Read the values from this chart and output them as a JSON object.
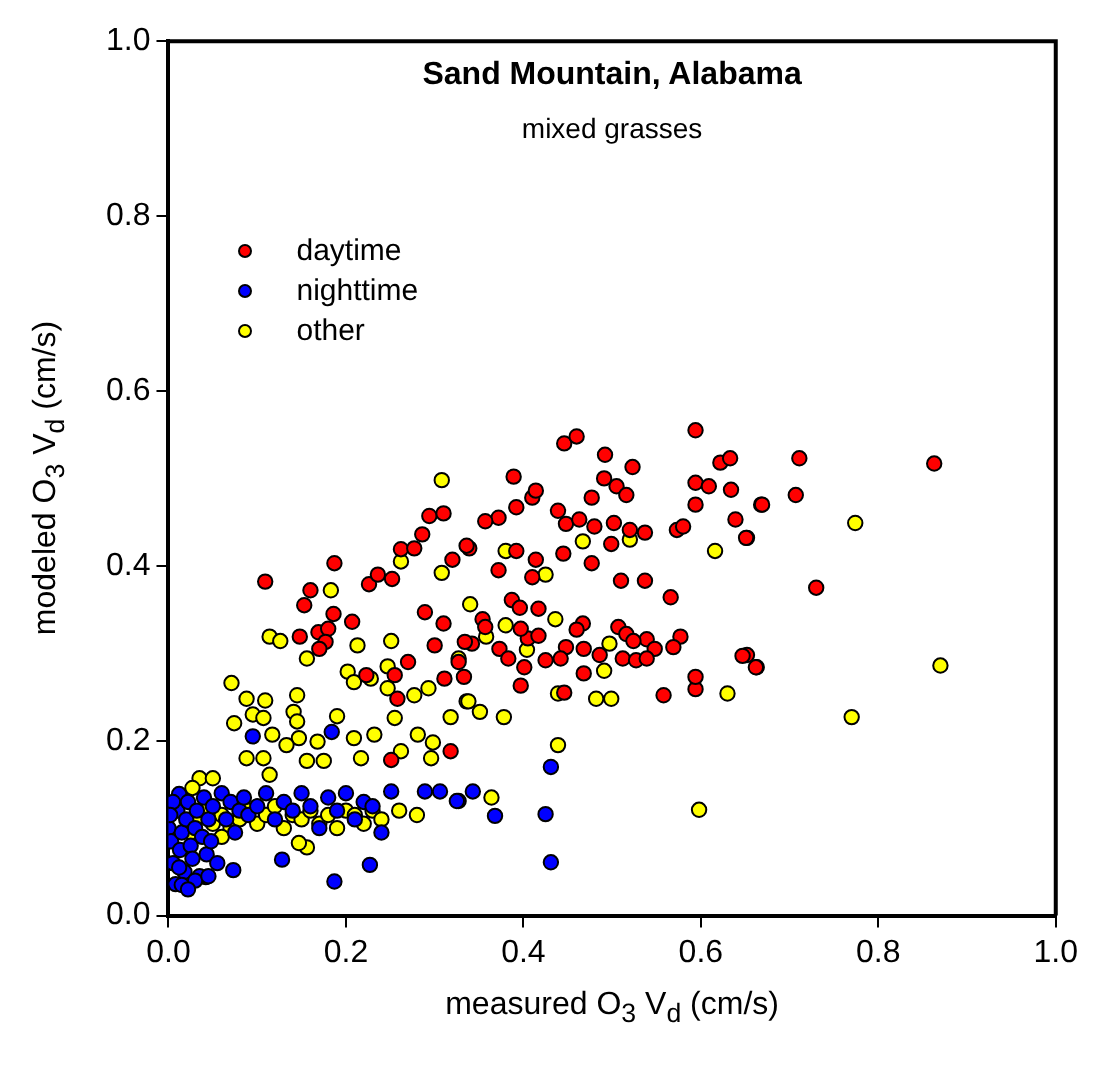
{
  "chart_data": {
    "type": "scatter",
    "title": "Sand Mountain, Alabama",
    "subtitle": "mixed grasses",
    "xlabel": "measured  O$_{3}$ V$_{d}$ (cm/s)",
    "ylabel": "modeled O$_{3}$ V$_{d}$ (cm/s)",
    "xlim": [
      0,
      1
    ],
    "ylim": [
      0,
      1
    ],
    "xticks": [
      {
        "value": 0,
        "label": "0.0"
      },
      {
        "value": 0.2,
        "label": "0.2"
      },
      {
        "value": 0.4,
        "label": "0.4"
      },
      {
        "value": 0.6,
        "label": "0.6"
      },
      {
        "value": 0.8,
        "label": "0.8"
      },
      {
        "value": 1,
        "label": "1.0"
      }
    ],
    "yticks": [
      {
        "value": 0,
        "label": "0.0"
      },
      {
        "value": 0.2,
        "label": "0.2"
      },
      {
        "value": 0.4,
        "label": "0.4"
      },
      {
        "value": 0.6,
        "label": "0.6"
      },
      {
        "value": 0.8,
        "label": "0.8"
      },
      {
        "value": 1,
        "label": "1.0"
      }
    ],
    "grid": false,
    "legend": "top left",
    "marker": "circle",
    "series": [
      {
        "name": "daytime",
        "color": "#ff0000",
        "x": [
          0.863,
          0.711,
          0.707,
          0.668,
          0.652,
          0.73,
          0.663,
          0.652,
          0.446,
          0.46,
          0.594,
          0.492,
          0.523,
          0.389,
          0.491,
          0.505,
          0.516,
          0.477,
          0.594,
          0.609,
          0.634,
          0.622,
          0.633,
          0.669,
          0.594,
          0.639,
          0.651,
          0.41,
          0.414,
          0.392,
          0.439,
          0.448,
          0.463,
          0.48,
          0.502,
          0.52,
          0.537,
          0.499,
          0.573,
          0.58,
          0.477,
          0.445,
          0.414,
          0.392,
          0.372,
          0.357,
          0.339,
          0.32,
          0.372,
          0.41,
          0.51,
          0.537,
          0.566,
          0.387,
          0.396,
          0.417,
          0.467,
          0.46,
          0.507,
          0.516,
          0.539,
          0.577,
          0.569,
          0.548,
          0.524,
          0.512,
          0.527,
          0.539,
          0.486,
          0.468,
          0.448,
          0.442,
          0.425,
          0.401,
          0.405,
          0.417,
          0.397,
          0.354,
          0.357,
          0.373,
          0.383,
          0.342,
          0.333,
          0.397,
          0.468,
          0.446,
          0.558,
          0.594,
          0.594,
          0.647,
          0.662,
          0.318,
          0.109,
          0.187,
          0.16,
          0.153,
          0.186,
          0.207,
          0.226,
          0.236,
          0.252,
          0.262,
          0.277,
          0.286,
          0.294,
          0.31,
          0.336,
          0.148,
          0.169,
          0.18,
          0.177,
          0.17,
          0.289,
          0.31,
          0.3,
          0.334,
          0.255,
          0.223,
          0.258,
          0.251,
          0.27,
          0.311,
          0.327
        ],
        "values": [
          0.517,
          0.523,
          0.481,
          0.47,
          0.432,
          0.375,
          0.284,
          0.298,
          0.54,
          0.548,
          0.555,
          0.527,
          0.513,
          0.502,
          0.5,
          0.491,
          0.481,
          0.478,
          0.495,
          0.491,
          0.487,
          0.518,
          0.523,
          0.47,
          0.47,
          0.453,
          0.432,
          0.478,
          0.486,
          0.467,
          0.463,
          0.448,
          0.453,
          0.445,
          0.449,
          0.441,
          0.438,
          0.425,
          0.441,
          0.445,
          0.403,
          0.414,
          0.407,
          0.417,
          0.455,
          0.451,
          0.42,
          0.407,
          0.395,
          0.387,
          0.383,
          0.383,
          0.364,
          0.361,
          0.352,
          0.351,
          0.334,
          0.327,
          0.33,
          0.322,
          0.316,
          0.319,
          0.307,
          0.305,
          0.314,
          0.294,
          0.292,
          0.294,
          0.298,
          0.305,
          0.307,
          0.294,
          0.292,
          0.284,
          0.317,
          0.32,
          0.328,
          0.339,
          0.33,
          0.305,
          0.294,
          0.311,
          0.273,
          0.263,
          0.277,
          0.255,
          0.252,
          0.259,
          0.273,
          0.297,
          0.284,
          0.188,
          0.382,
          0.403,
          0.372,
          0.355,
          0.345,
          0.336,
          0.379,
          0.39,
          0.385,
          0.419,
          0.42,
          0.436,
          0.457,
          0.46,
          0.423,
          0.319,
          0.324,
          0.328,
          0.313,
          0.305,
          0.347,
          0.334,
          0.309,
          0.313,
          0.275,
          0.275,
          0.248,
          0.178,
          0.29,
          0.271,
          0.29
        ]
      },
      {
        "name": "nighttime",
        "color": "#0000ff",
        "x": [
          0.0,
          0.003,
          0.005,
          0.008,
          0.01,
          0.012,
          0.013,
          0.015,
          0.018,
          0.02,
          0.022,
          0.025,
          0.027,
          0.03,
          0.032,
          0.035,
          0.038,
          0.04,
          0.043,
          0.045,
          0.048,
          0.05,
          0.055,
          0.005,
          0.002,
          0.015,
          0.03,
          0.06,
          0.065,
          0.07,
          0.075,
          0.08,
          0.085,
          0.09,
          0.1,
          0.11,
          0.12,
          0.13,
          0.14,
          0.15,
          0.16,
          0.17,
          0.18,
          0.19,
          0.2,
          0.21,
          0.22,
          0.23,
          0.24,
          0.251,
          0.289,
          0.306,
          0.327,
          0.343,
          0.325,
          0.368,
          0.425,
          0.431,
          0.431,
          0.184,
          0.095,
          0.128,
          0.187,
          0.227,
          0.012,
          0.022,
          0.045,
          0.073
        ],
        "values": [
          0.1,
          0.085,
          0.06,
          0.036,
          0.12,
          0.139,
          0.075,
          0.095,
          0.05,
          0.11,
          0.13,
          0.08,
          0.065,
          0.1,
          0.12,
          0.045,
          0.09,
          0.135,
          0.07,
          0.11,
          0.085,
          0.125,
          0.06,
          0.13,
          0.115,
          0.035,
          0.04,
          0.14,
          0.11,
          0.13,
          0.095,
          0.12,
          0.135,
          0.115,
          0.125,
          0.14,
          0.11,
          0.13,
          0.12,
          0.14,
          0.125,
          0.1,
          0.135,
          0.12,
          0.14,
          0.11,
          0.13,
          0.125,
          0.095,
          0.142,
          0.142,
          0.142,
          0.131,
          0.142,
          0.131,
          0.114,
          0.116,
          0.17,
          0.061,
          0.21,
          0.205,
          0.064,
          0.039,
          0.058,
          0.055,
          0.03,
          0.045,
          0.052
        ]
      },
      {
        "name": "other",
        "color": "#ffff00",
        "x": [
          0.774,
          0.87,
          0.77,
          0.439,
          0.598,
          0.364,
          0.63,
          0.616,
          0.467,
          0.52,
          0.425,
          0.38,
          0.436,
          0.378,
          0.351,
          0.336,
          0.318,
          0.439,
          0.482,
          0.499,
          0.491,
          0.34,
          0.38,
          0.327,
          0.358,
          0.404,
          0.497,
          0.308,
          0.262,
          0.308,
          0.183,
          0.114,
          0.126,
          0.213,
          0.156,
          0.251,
          0.247,
          0.202,
          0.209,
          0.228,
          0.247,
          0.277,
          0.293,
          0.338,
          0.071,
          0.145,
          0.141,
          0.109,
          0.088,
          0.095,
          0.074,
          0.107,
          0.117,
          0.145,
          0.147,
          0.133,
          0.168,
          0.156,
          0.175,
          0.19,
          0.209,
          0.217,
          0.232,
          0.255,
          0.281,
          0.298,
          0.296,
          0.262,
          0.088,
          0.107,
          0.035,
          0.05,
          0.114,
          0.027,
          0.03,
          0.04,
          0.05,
          0.06,
          0.07,
          0.08,
          0.09,
          0.1,
          0.11,
          0.12,
          0.13,
          0.14,
          0.15,
          0.16,
          0.17,
          0.18,
          0.19,
          0.2,
          0.21,
          0.22,
          0.23,
          0.24,
          0.26,
          0.28,
          0.156,
          0.147,
          0.042,
          0.06,
          0.025
        ],
        "values": [
          0.449,
          0.286,
          0.227,
          0.195,
          0.121,
          0.135,
          0.254,
          0.417,
          0.428,
          0.43,
          0.39,
          0.417,
          0.339,
          0.227,
          0.233,
          0.245,
          0.227,
          0.254,
          0.248,
          0.248,
          0.28,
          0.356,
          0.332,
          0.294,
          0.319,
          0.304,
          0.311,
          0.498,
          0.405,
          0.392,
          0.372,
          0.319,
          0.314,
          0.309,
          0.294,
          0.314,
          0.285,
          0.279,
          0.267,
          0.271,
          0.26,
          0.252,
          0.26,
          0.245,
          0.266,
          0.252,
          0.233,
          0.246,
          0.248,
          0.23,
          0.22,
          0.226,
          0.207,
          0.222,
          0.203,
          0.195,
          0.199,
          0.177,
          0.177,
          0.228,
          0.203,
          0.18,
          0.207,
          0.226,
          0.207,
          0.198,
          0.18,
          0.188,
          0.18,
          0.18,
          0.157,
          0.157,
          0.161,
          0.146,
          0.11,
          0.12,
          0.105,
          0.115,
          0.1,
          0.11,
          0.12,
          0.105,
          0.115,
          0.125,
          0.1,
          0.115,
          0.11,
          0.12,
          0.105,
          0.115,
          0.1,
          0.12,
          0.115,
          0.105,
          0.12,
          0.11,
          0.12,
          0.115,
          0.078,
          0.083,
          0.044,
          0.09,
          0.095
        ]
      }
    ]
  }
}
